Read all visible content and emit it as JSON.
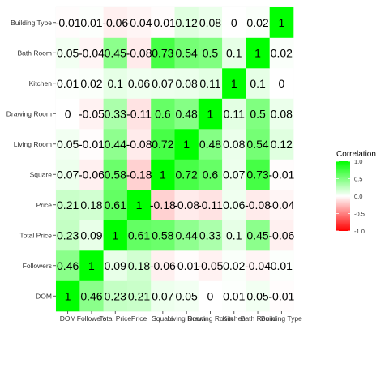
{
  "chart_data": {
    "type": "heatmap",
    "variables": [
      "DOM",
      "Followers",
      "Total Price",
      "Price",
      "Square",
      "Living Room",
      "Drawing Room",
      "Kitchen",
      "Bath Room",
      "Building Type"
    ],
    "matrix": [
      [
        "1",
        "0.46",
        "0.23",
        "0.21",
        "0.07",
        "0.05",
        "0",
        "0.01",
        "0.05",
        "-0.01"
      ],
      [
        "0.46",
        "1",
        "0.09",
        "0.18",
        "-0.06",
        "-0.01",
        "-0.05",
        "0.02",
        "-0.04",
        "0.01"
      ],
      [
        "0.23",
        "0.09",
        "1",
        "0.61",
        "0.58",
        "0.44",
        "0.33",
        "0.1",
        "0.45",
        "-0.06"
      ],
      [
        "0.21",
        "0.18",
        "0.61",
        "1",
        "-0.18",
        "-0.08",
        "-0.11",
        "0.06",
        "-0.08",
        "-0.04"
      ],
      [
        "0.07",
        "-0.06",
        "0.58",
        "-0.18",
        "1",
        "0.72",
        "0.6",
        "0.07",
        "0.73",
        "-0.01"
      ],
      [
        "0.05",
        "-0.01",
        "0.44",
        "-0.08",
        "0.72",
        "1",
        "0.48",
        "0.08",
        "0.54",
        "0.12"
      ],
      [
        "0",
        "-0.05",
        "0.33",
        "-0.11",
        "0.6",
        "0.48",
        "1",
        "0.11",
        "0.5",
        "0.08"
      ],
      [
        "0.01",
        "0.02",
        "0.1",
        "0.06",
        "0.07",
        "0.08",
        "0.11",
        "1",
        "0.1",
        "0"
      ],
      [
        "0.05",
        "-0.04",
        "0.45",
        "-0.08",
        "0.73",
        "0.54",
        "0.5",
        "0.1",
        "1",
        "0.02"
      ],
      [
        "-0.01",
        "0.01",
        "-0.06",
        "-0.04",
        "-0.01",
        "0.12",
        "0.08",
        "0",
        "0.02",
        "1"
      ]
    ],
    "legend": {
      "title": "Correlation",
      "ticks": [
        "1.0",
        "0.5",
        "0.0",
        "-0.5",
        "-1.0"
      ],
      "range": [
        -1,
        1
      ],
      "placement": "right"
    },
    "colors": {
      "low": "#FF0000",
      "mid": "#FFFFFF",
      "high": "#00FF00"
    },
    "grid": true,
    "title": "",
    "xlabel": "",
    "ylabel": ""
  }
}
